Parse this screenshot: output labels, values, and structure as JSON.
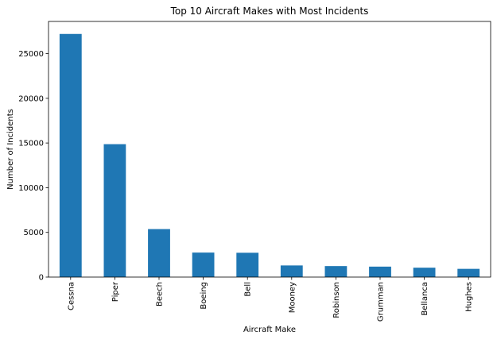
{
  "chart_data": {
    "type": "bar",
    "title": "Top 10 Aircraft Makes with Most Incidents",
    "xlabel": "Aircraft Make",
    "ylabel": "Number of Incidents",
    "categories": [
      "Cessna",
      "Piper",
      "Beech",
      "Boeing",
      "Bell",
      "Mooney",
      "Robinson",
      "Grumman",
      "Bellanca",
      "Hughes"
    ],
    "values": [
      27200,
      14870,
      5370,
      2740,
      2720,
      1300,
      1230,
      1170,
      1050,
      920
    ],
    "ylim": [
      0,
      28600
    ],
    "yticks": [
      0,
      5000,
      10000,
      15000,
      20000,
      25000
    ],
    "grid": false,
    "bar_color": "#1f77b4"
  }
}
